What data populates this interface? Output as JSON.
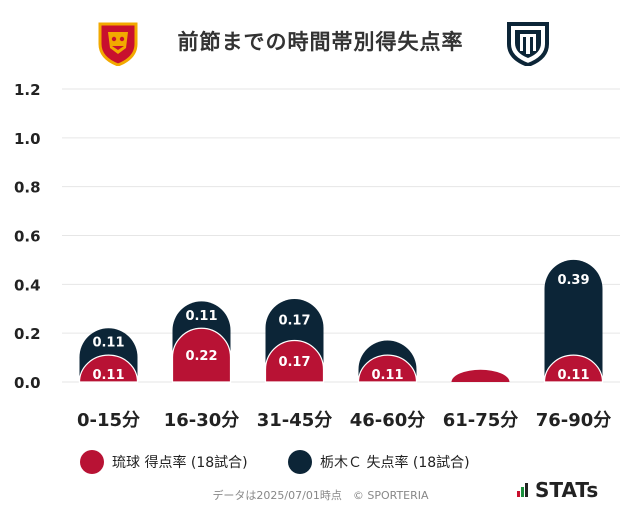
{
  "header": {
    "title": "前節までの時間帯別得失点率",
    "home_logo_icon": "ryukyu-crest-icon",
    "away_logo_icon": "tochigi-city-shield-icon"
  },
  "colors": {
    "home": "#b81234",
    "away": "#0c2537",
    "grid": "#e6e6e6",
    "axis_text": "#222222"
  },
  "chart_data": {
    "type": "bar",
    "stacked": true,
    "categories": [
      "0-15分",
      "16-30分",
      "31-45分",
      "46-60分",
      "61-75分",
      "76-90分"
    ],
    "series": [
      {
        "name": "琉球 得点率 (18試合)",
        "values": [
          0.11,
          0.22,
          0.17,
          0.11,
          0.0,
          0.11
        ],
        "labels": [
          "0.11",
          "0.22",
          "0.17",
          "0.11",
          "",
          "0.11"
        ]
      },
      {
        "name": "栃木Ｃ 失点率 (18試合)",
        "values": [
          0.11,
          0.11,
          0.17,
          0.06,
          0.0,
          0.39
        ],
        "labels": [
          "0.11",
          "0.11",
          "0.17",
          "",
          "",
          "0.39"
        ]
      }
    ],
    "ylim": [
      0,
      1.2
    ],
    "yticks": [
      "0.0",
      "0.2",
      "0.4",
      "0.6",
      "0.8",
      "1.0",
      "1.2"
    ],
    "grid": true,
    "legend_position": "bottom"
  },
  "legend": {
    "home_label": "琉球 得点率 (18試合)",
    "away_label": "栃木Ｃ 失点率 (18試合)"
  },
  "footer": {
    "note": "データは2025/07/01時点　© SPORTERIA",
    "brand": "STATs"
  }
}
